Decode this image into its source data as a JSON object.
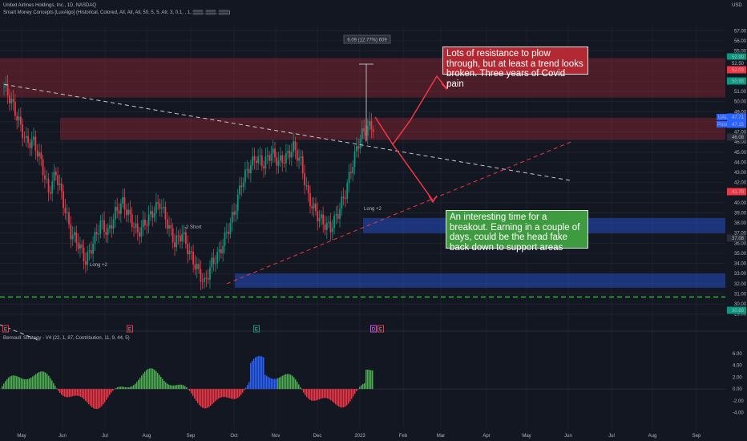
{
  "header": {
    "symbol_line": "United Airlines Holdings, Inc., 1D, NASDAQ",
    "indicator_line": "Smart Money Concepts [LuxAlgo] (Historical, Colored, All, All, All, 50, 5, 5, Atr, 3, 0.1, , 1, ▒▒▒, ▒▒▒, ▒▒▒)",
    "oscillator_line": "Bernoulli Strategy - V4 (22, 1, 87, Contribution, 11, 9, 44, 5)",
    "currency": "USD"
  },
  "annotations": {
    "red_note": "Lots of resistance to plow through, but at least a trend looks broken. Three years of Covid pain",
    "green_note": "An interesting time for a breakout. Earning in a couple of days, could be the head fake back down to support areas",
    "measure_label": "6.09 (12.77%) 609",
    "long_label_1": "Long +2",
    "short_label": "-2 Short",
    "long_label_2": "Long +2"
  },
  "price_badges": [
    {
      "text": "52.99",
      "color": "#089981"
    },
    {
      "text": "52.50",
      "color": "#131722"
    },
    {
      "text": "52.03",
      "color": "#f23645"
    },
    {
      "text": "50.98",
      "color": "#089981"
    },
    {
      "text": "47.71",
      "color": "#2962ff"
    },
    {
      "text": "47.15",
      "color": "#2962ff"
    },
    {
      "text": "46.08",
      "color": "#2a2e39"
    },
    {
      "text": "41.78",
      "color": "#f23645"
    },
    {
      "text": "37.08",
      "color": "#2a2e39"
    },
    {
      "text": "30.69",
      "color": "#089981"
    }
  ],
  "symbol_tags": {
    "ual": "UAL",
    "post": "Post"
  },
  "chart_data": [
    {
      "type": "candlestick",
      "title": "United Airlines Holdings, Inc., 1D, NASDAQ",
      "y_axis_ticks": [
        "57.00",
        "56.00",
        "55.00",
        "54.00",
        "53.00",
        "52.00",
        "51.00",
        "50.00",
        "49.00",
        "48.00",
        "47.00",
        "46.00",
        "45.00",
        "44.00",
        "43.00",
        "42.00",
        "41.00",
        "40.00",
        "39.00",
        "38.00",
        "37.00",
        "36.00",
        "35.00",
        "34.00",
        "33.00",
        "32.00",
        "31.00",
        "30.00",
        "29.00"
      ],
      "ylim": [
        28.5,
        57.5
      ],
      "x_tick_labels": [
        "May",
        "Jun",
        "Jul",
        "Aug",
        "Sep",
        "Oct",
        "Nov",
        "Dec",
        "2023",
        "Feb",
        "Mar",
        "Apr",
        "May",
        "Jun",
        "Jul",
        "Aug",
        "Sep"
      ],
      "approx_closes": [
        51.5,
        50,
        48,
        46,
        46,
        44,
        41,
        43,
        40,
        37,
        36,
        34.2,
        36,
        38,
        37,
        39,
        40,
        38.5,
        37,
        38,
        39,
        40,
        38,
        36,
        37,
        35,
        33.5,
        32,
        34,
        35,
        37,
        39,
        42,
        43.5,
        44.5,
        43.8,
        45,
        44,
        44.5,
        45.5,
        44,
        40.5,
        39,
        38,
        37.5,
        39,
        41,
        44,
        46.5,
        47.5
      ],
      "zones": [
        {
          "name": "resistance-top",
          "ymin": 52.4,
          "ymax": 54.3
        },
        {
          "name": "resistance-mid",
          "ymin": 50.4,
          "ymax": 52.4
        },
        {
          "name": "resistance-low",
          "ymin": 46.2,
          "ymax": 48.4
        },
        {
          "name": "support-upper",
          "ymin": 37.0,
          "ymax": 38.5
        },
        {
          "name": "support-lower",
          "ymin": 31.6,
          "ymax": 33.0
        }
      ],
      "horizontal_level": 30.69,
      "grid": true
    },
    {
      "type": "bar",
      "title": "Bernoulli Strategy - V4 (22, 1, 87, Contribution, 11, 9, 44, 5)",
      "y_axis_ticks": [
        "6.00",
        "4.00",
        "2.00",
        "0.00",
        "-2.00",
        "-4.00"
      ],
      "ylim": [
        -5,
        7.2
      ]
    }
  ]
}
